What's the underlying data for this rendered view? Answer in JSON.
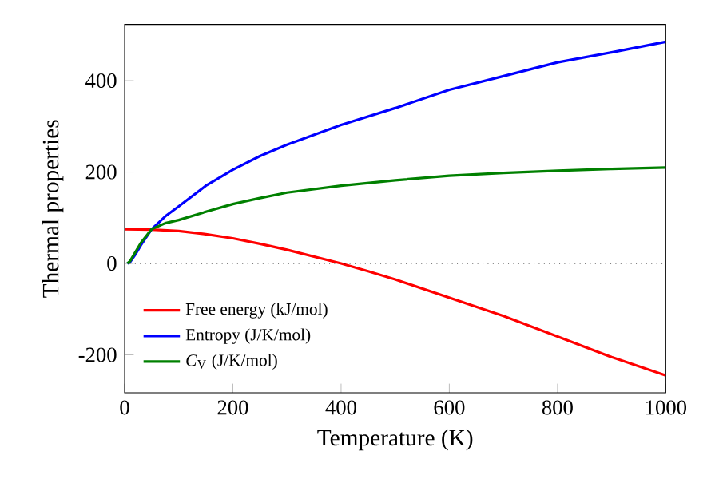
{
  "chart_data": {
    "type": "line",
    "xlabel": "Temperature (K)",
    "ylabel": "Thermal properties",
    "xlim": [
      0,
      1000
    ],
    "ylim": [
      -283,
      523
    ],
    "xticks": [
      0,
      200,
      400,
      600,
      800,
      1000
    ],
    "yticks": [
      -200,
      0,
      200,
      400
    ],
    "legend": "bottom left",
    "grid": false,
    "marker": "none",
    "line_style": "solid",
    "ref_lines": [
      {
        "axis": "y",
        "value": 0,
        "color": "#000000",
        "line_style": "dotted"
      }
    ],
    "series": [
      {
        "name": "Free energy (kJ/mol)",
        "color": "#ff0000",
        "x": [
          0,
          50,
          100,
          150,
          200,
          250,
          300,
          350,
          400,
          450,
          500,
          600,
          700,
          800,
          900,
          1000
        ],
        "values": [
          75,
          74,
          71,
          64,
          55,
          43,
          30,
          15,
          0,
          -17,
          -35,
          -75,
          -115,
          -160,
          -205,
          -245
        ]
      },
      {
        "name": "Entropy (J/K/mol)",
        "color": "#0000ff",
        "x": [
          5,
          10,
          20,
          30,
          50,
          75,
          100,
          150,
          200,
          250,
          300,
          400,
          500,
          600,
          700,
          800,
          900,
          1000
        ],
        "values": [
          0,
          3,
          20,
          40,
          75,
          103,
          125,
          170,
          205,
          235,
          260,
          303,
          340,
          380,
          410,
          440,
          462,
          485
        ]
      },
      {
        "name": "*C*$_{V}$ (J/K/mol)",
        "color": "#008000",
        "x": [
          5,
          10,
          20,
          30,
          50,
          75,
          100,
          150,
          200,
          250,
          300,
          400,
          500,
          600,
          700,
          800,
          900,
          1000
        ],
        "values": [
          0,
          5,
          25,
          45,
          75,
          88,
          95,
          113,
          130,
          143,
          155,
          170,
          182,
          192,
          198,
          203,
          207,
          210
        ]
      }
    ]
  }
}
